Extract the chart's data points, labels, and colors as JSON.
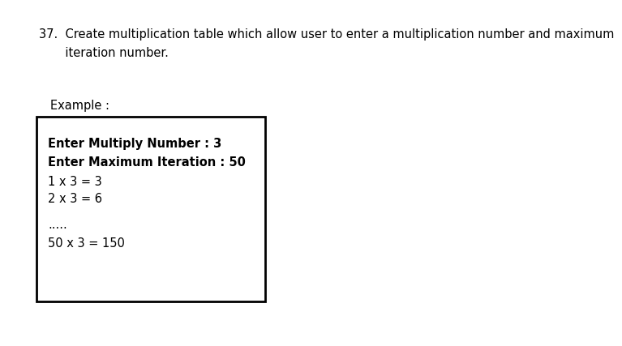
{
  "background_color": "#ffffff",
  "title_line1": "37.  Create multiplication table which allow user to enter a multiplication number and maximum",
  "title_line2": "       iteration number.",
  "example_label": "Example :",
  "box_lines": [
    {
      "text": "Enter Multiply Number : 3",
      "bold": true
    },
    {
      "text": "Enter Maximum Iteration : 50",
      "bold": true
    },
    {
      "text": "1 x 3 = 3",
      "bold": false
    },
    {
      "text": "2 x 3 = 6",
      "bold": false
    },
    {
      "text": ".....",
      "bold": false
    },
    {
      "text": "50 x 3 = 150",
      "bold": false
    }
  ],
  "title_fontsize": 10.5,
  "content_fontsize": 10.5,
  "example_fontsize": 10.5,
  "font_family": "DejaVu Sans"
}
